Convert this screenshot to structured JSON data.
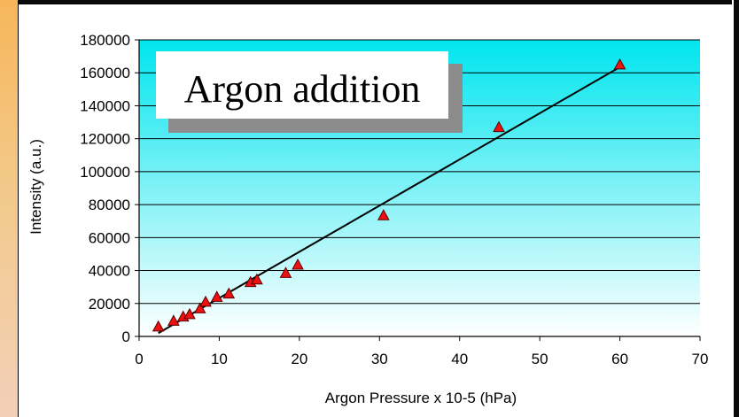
{
  "chart_data": {
    "type": "scatter",
    "title": "Argon addition",
    "xlabel": "Argon Pressure x 10-5 (hPa)",
    "ylabel": "Intensity (a.u.)",
    "xlim": [
      0,
      70
    ],
    "ylim": [
      0,
      180000
    ],
    "x_ticks": [
      "0",
      "10",
      "20",
      "30",
      "40",
      "50",
      "60",
      "70"
    ],
    "y_ticks": [
      "0",
      "20000",
      "40000",
      "60000",
      "80000",
      "100000",
      "120000",
      "140000",
      "160000",
      "180000"
    ],
    "grid": "horizontal",
    "marker": "triangle",
    "colors": {
      "marker_fill": "#ee1111",
      "marker_edge": "#5a0000",
      "plot_bg_top": "#00e5ee",
      "plot_bg_bottom": "#ffffff",
      "trendline": "#000000"
    },
    "series": [
      {
        "points": [
          {
            "x": 2.4,
            "y": 6000
          },
          {
            "x": 4.3,
            "y": 9500
          },
          {
            "x": 5.5,
            "y": 12000
          },
          {
            "x": 6.3,
            "y": 13500
          },
          {
            "x": 7.6,
            "y": 17000
          },
          {
            "x": 8.3,
            "y": 21000
          },
          {
            "x": 9.7,
            "y": 24000
          },
          {
            "x": 11.2,
            "y": 26000
          },
          {
            "x": 13.9,
            "y": 33000
          },
          {
            "x": 14.7,
            "y": 34500
          },
          {
            "x": 18.3,
            "y": 38500
          },
          {
            "x": 19.8,
            "y": 43500
          },
          {
            "x": 30.5,
            "y": 73500
          },
          {
            "x": 44.9,
            "y": 127000
          },
          {
            "x": 60.0,
            "y": 165000
          }
        ]
      }
    ],
    "trendline": {
      "x": [
        2.4,
        60.0
      ],
      "y": [
        2000,
        163500
      ]
    }
  }
}
